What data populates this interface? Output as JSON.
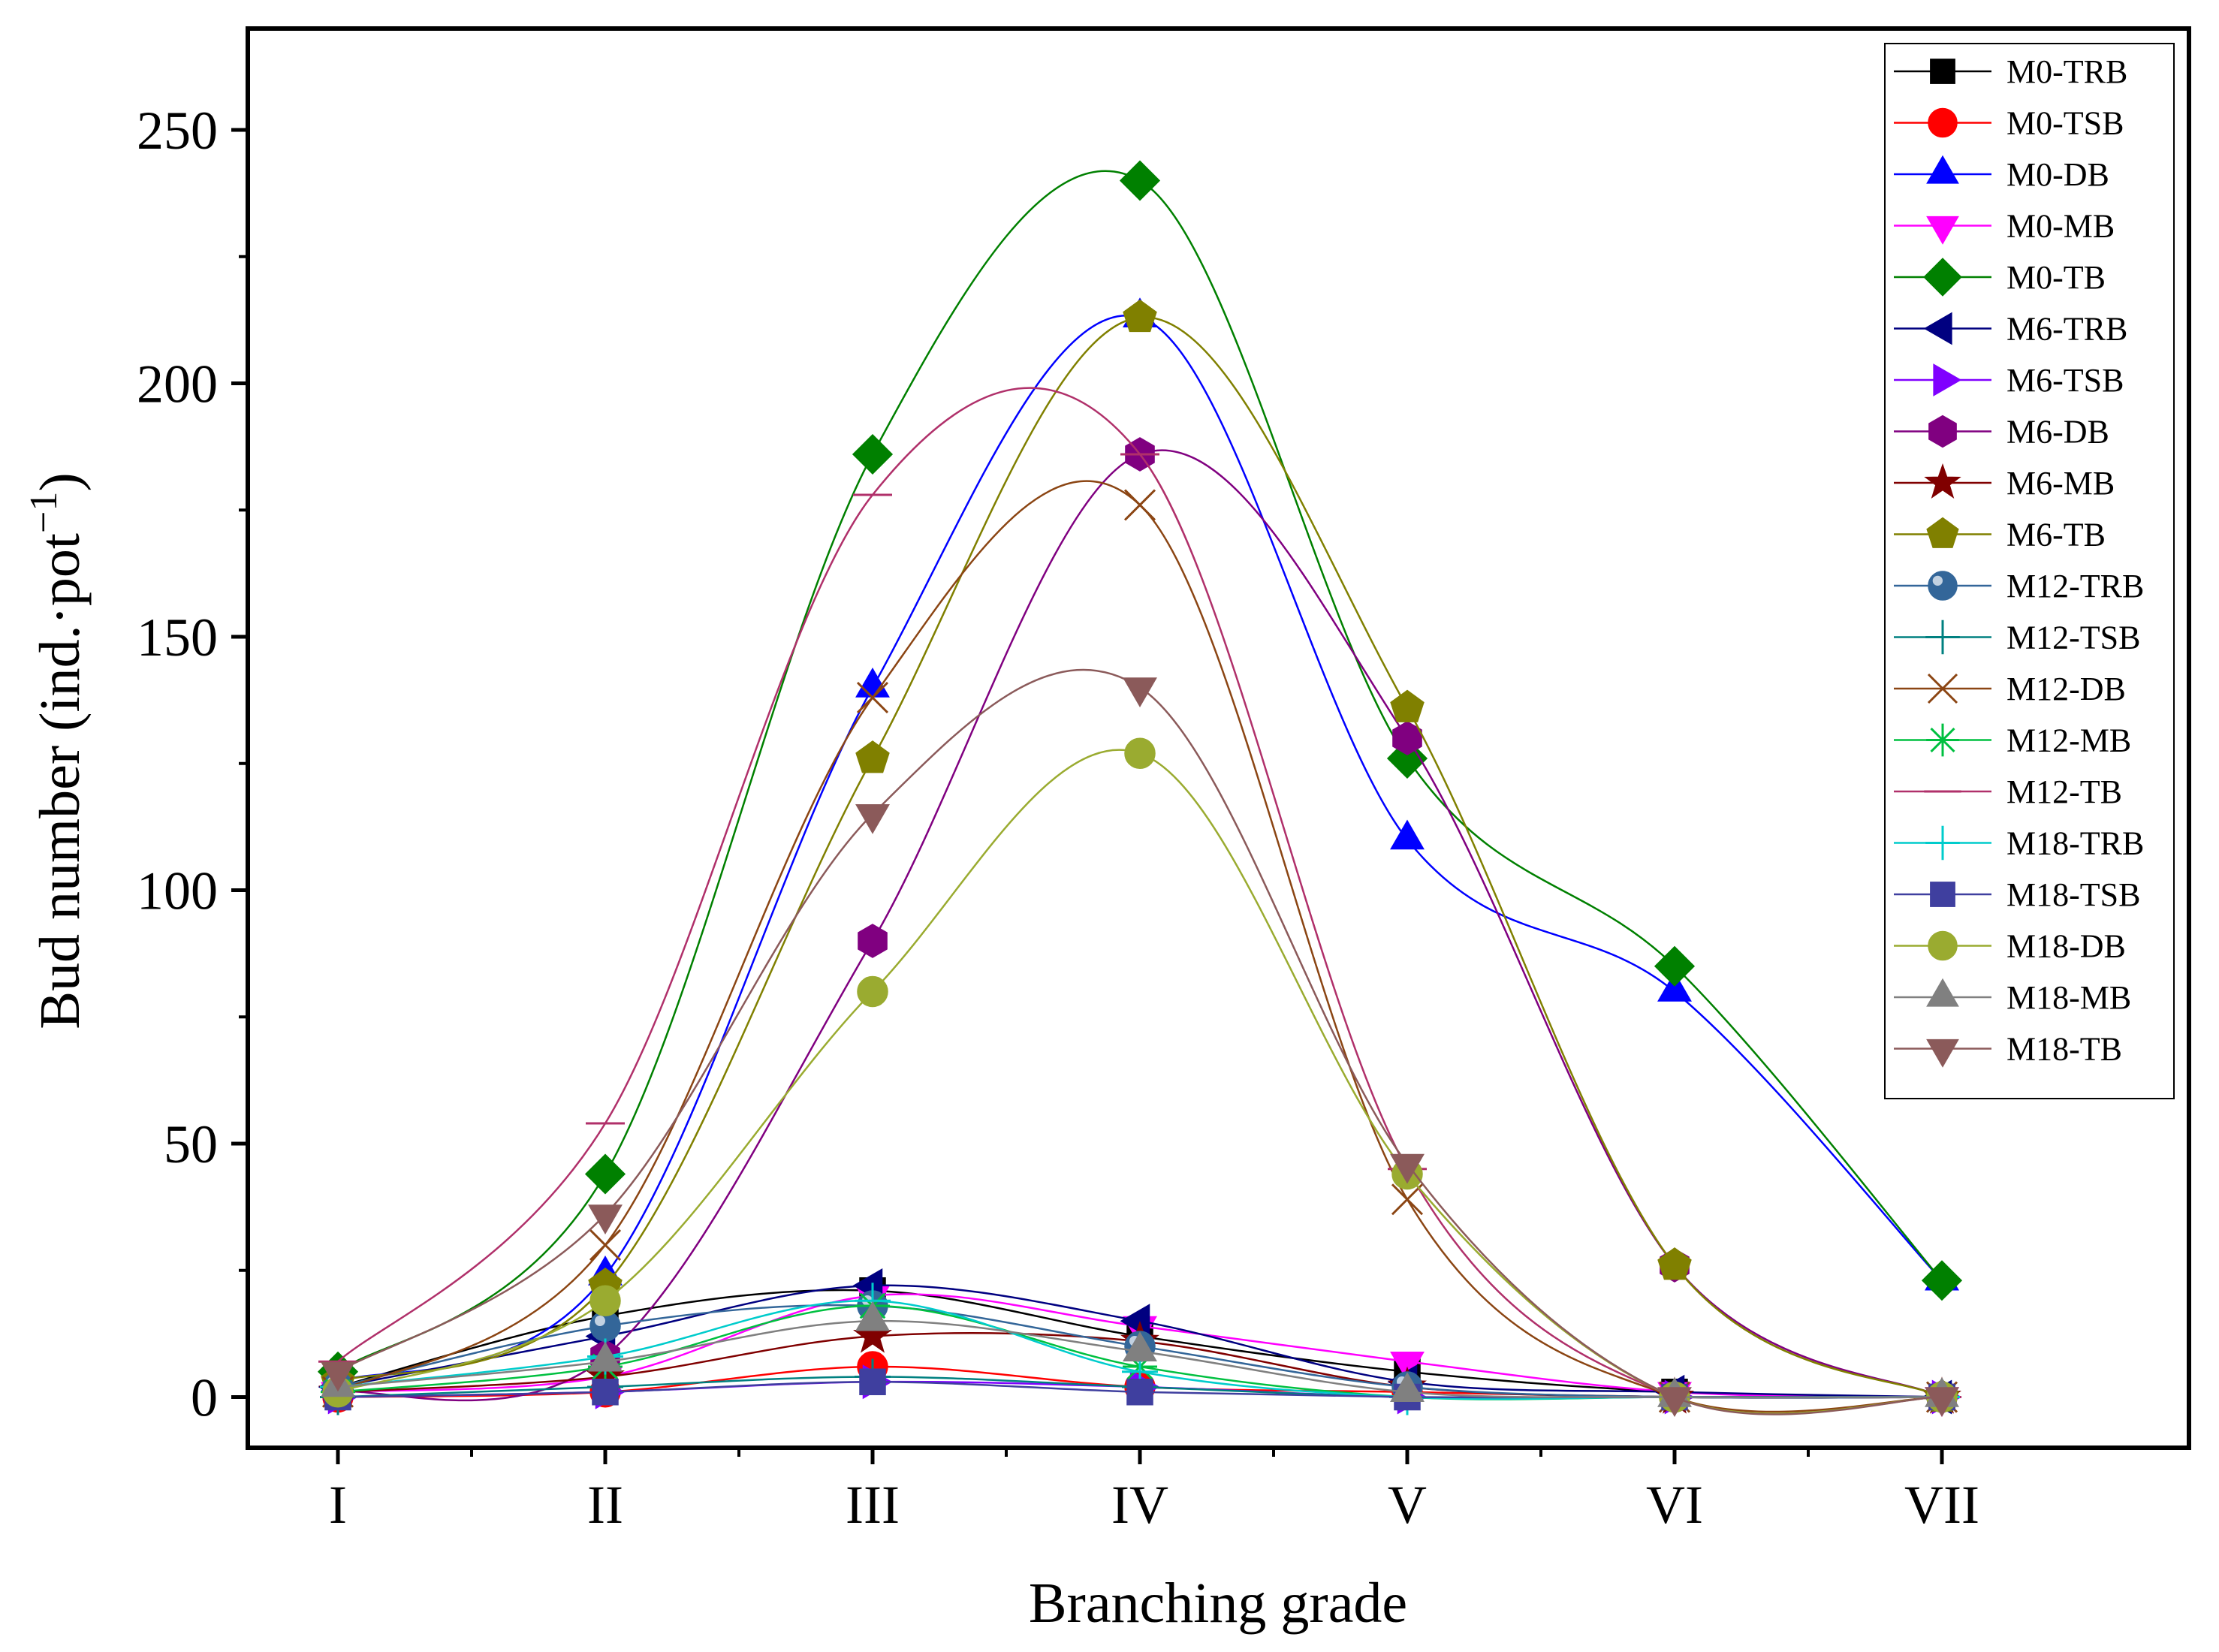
{
  "chart_data": {
    "type": "line",
    "categories": [
      "I",
      "II",
      "III",
      "IV",
      "V",
      "VI",
      "VII"
    ],
    "xlabel": "Branching grade",
    "ylabel": "Bud number (ind.·pot",
    "ylabel_sup": "−1",
    "ylabel_close": ")",
    "ylim": [
      -10,
      270
    ],
    "yticks": [
      0,
      50,
      100,
      150,
      200,
      250
    ],
    "grid": false,
    "legend_position": "top-right",
    "series": [
      {
        "name": "M0-TRB",
        "color": "#000000",
        "marker": "square",
        "values": [
          2,
          16,
          21,
          12,
          5,
          1,
          0
        ]
      },
      {
        "name": "M0-TSB",
        "color": "#ff0000",
        "marker": "circle",
        "values": [
          0,
          1,
          6,
          2,
          1,
          0,
          0
        ]
      },
      {
        "name": "M0-DB",
        "color": "#0000ff",
        "marker": "triangle-up",
        "values": [
          3,
          24,
          140,
          213,
          110,
          80,
          23
        ]
      },
      {
        "name": "M0-MB",
        "color": "#ff00ff",
        "marker": "triangle-down",
        "values": [
          1,
          4,
          20,
          14,
          7,
          1,
          0
        ]
      },
      {
        "name": "M0-TB",
        "color": "#008000",
        "marker": "diamond",
        "values": [
          5,
          44,
          186,
          240,
          126,
          85,
          23
        ]
      },
      {
        "name": "M6-TRB",
        "color": "#000080",
        "marker": "triangle-left",
        "values": [
          2,
          12,
          22,
          15,
          3,
          1,
          0
        ]
      },
      {
        "name": "M6-TSB",
        "color": "#8000ff",
        "marker": "triangle-right",
        "values": [
          0,
          1,
          3,
          2,
          0,
          0,
          0
        ]
      },
      {
        "name": "M6-DB",
        "color": "#800080",
        "marker": "hexagon",
        "values": [
          1,
          8,
          90,
          186,
          130,
          26,
          0
        ]
      },
      {
        "name": "M6-MB",
        "color": "#800000",
        "marker": "star",
        "values": [
          1,
          4,
          12,
          11,
          2,
          0,
          0
        ]
      },
      {
        "name": "M6-TB",
        "color": "#808000",
        "marker": "pentagon",
        "values": [
          3,
          22,
          126,
          213,
          136,
          26,
          0
        ]
      },
      {
        "name": "M12-TRB",
        "color": "#336699",
        "marker": "sphere",
        "values": [
          2,
          14,
          18,
          10,
          2,
          0,
          0
        ]
      },
      {
        "name": "M12-TSB",
        "color": "#008080",
        "marker": "plus",
        "values": [
          0,
          2,
          4,
          2,
          0,
          0,
          0
        ]
      },
      {
        "name": "M12-DB",
        "color": "#8b4513",
        "marker": "x",
        "values": [
          1,
          30,
          138,
          176,
          39,
          0,
          0
        ]
      },
      {
        "name": "M12-MB",
        "color": "#00c040",
        "marker": "asterisk",
        "values": [
          1,
          6,
          18,
          6,
          0,
          0,
          0
        ]
      },
      {
        "name": "M12-TB",
        "color": "#b0306a",
        "marker": "dash",
        "values": [
          7,
          54,
          178,
          186,
          45,
          0,
          0
        ]
      },
      {
        "name": "M18-TRB",
        "color": "#00cccc",
        "marker": "plus",
        "values": [
          2,
          8,
          19,
          5,
          0,
          0,
          0
        ]
      },
      {
        "name": "M18-TSB",
        "color": "#3f3f9f",
        "marker": "square",
        "values": [
          0,
          1,
          3,
          1,
          0,
          0,
          0
        ]
      },
      {
        "name": "M18-DB",
        "color": "#9aab30",
        "marker": "circle",
        "values": [
          1,
          19,
          80,
          127,
          44,
          0,
          0
        ]
      },
      {
        "name": "M18-MB",
        "color": "#808080",
        "marker": "triangle-up",
        "values": [
          2,
          7,
          15,
          9,
          1,
          0,
          0
        ]
      },
      {
        "name": "M18-TB",
        "color": "#8b5a5a",
        "marker": "triangle-down",
        "values": [
          5,
          36,
          115,
          140,
          46,
          0,
          0
        ]
      }
    ]
  }
}
